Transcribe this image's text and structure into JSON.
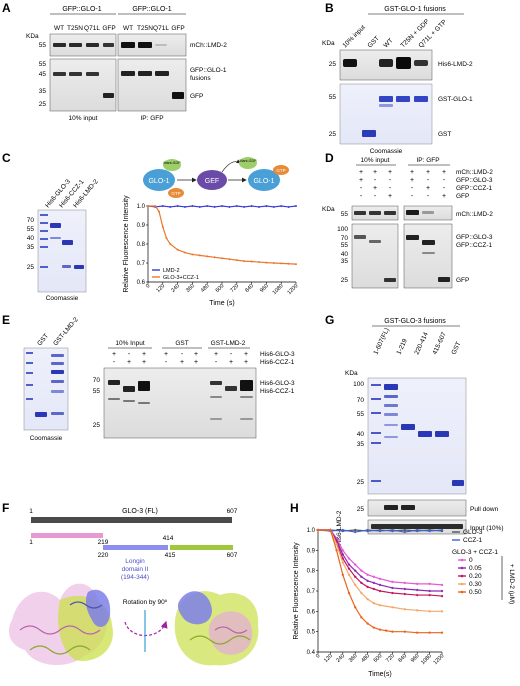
{
  "panelLetters": {
    "A": "A",
    "B": "B",
    "C": "C",
    "D": "D",
    "E": "E",
    "F": "F",
    "G": "G",
    "H": "H"
  },
  "kda": "KDa",
  "panelA": {
    "groups": [
      "GFP::GLO-1",
      "GFP::GLO-1"
    ],
    "lanes": [
      "WT",
      "T25N",
      "Q71L",
      "GFP",
      "WT",
      "T25N",
      "Q71L",
      "GFP"
    ],
    "markersTop": [
      "55"
    ],
    "markersBottom": [
      "55",
      "45",
      "35",
      "25"
    ],
    "rightTop": "mCh::LMD-2",
    "rightMid1": "GFP::GLO-1",
    "rightMid2": "fusions",
    "rightBottom": "GFP",
    "caption1": "10% input",
    "caption2": "IP: GFP"
  },
  "panelB": {
    "group": "GST-GLO-1 fusions",
    "lanes": [
      "10% input",
      "GST",
      "WT",
      "T25N + GDP",
      "Q71L + GTP"
    ],
    "markersTop": [
      "25"
    ],
    "markersBottom": [
      "55",
      "25"
    ],
    "rightTop": "His6-LMD-2",
    "rightMid": "GST-GLO-1",
    "rightBottom": "GST",
    "caption": "Coomassie"
  },
  "panelC": {
    "gelLanes": [
      "His6-GLO-3",
      "His6-CCZ-1",
      "His6-LMD-2"
    ],
    "markers": [
      "70",
      "55",
      "40",
      "35",
      "25"
    ],
    "caption": "Coomassie",
    "scheme": {
      "glo1": "GLO-1",
      "gef": "GEF",
      "gdp": "GDP",
      "gtp": "GTP",
      "gtp2": "GTP",
      "mant": "Mant-GDP",
      "mant2": "Mant-GDP"
    },
    "chart_data": {
      "type": "line",
      "xlabel": "Time (s)",
      "ylabel": "Relative Fluorescence Intensity",
      "xlim": [
        0,
        1200
      ],
      "ylim": [
        0.6,
        1.0
      ],
      "xticks": [
        0,
        120,
        240,
        360,
        480,
        600,
        720,
        840,
        960,
        1080,
        1200
      ],
      "yticks": [
        0.6,
        0.7,
        0.8,
        0.9,
        1.0
      ],
      "legend_position": "bottom-left",
      "series": [
        {
          "name": "LMD-2",
          "color": "#3a3ad6",
          "x": [
            0,
            60,
            120,
            180,
            240,
            300,
            360,
            420,
            480,
            540,
            600,
            660,
            720,
            780,
            840,
            900,
            960,
            1020,
            1080,
            1140,
            1200
          ],
          "y": [
            1.0,
            0.995,
            1.0,
            0.995,
            1.0,
            0.995,
            1.0,
            0.995,
            1.0,
            0.995,
            1.0,
            0.995,
            1.0,
            0.995,
            1.0,
            0.995,
            1.0,
            0.995,
            1.0,
            0.995,
            1.0
          ]
        },
        {
          "name": "GLO-3+CCZ-1",
          "color": "#e9772e",
          "x": [
            0,
            60,
            90,
            120,
            150,
            180,
            240,
            300,
            360,
            420,
            480,
            540,
            600,
            660,
            720,
            780,
            840,
            900,
            960,
            1020,
            1080,
            1140,
            1200
          ],
          "y": [
            1.0,
            1.0,
            0.97,
            0.89,
            0.83,
            0.8,
            0.77,
            0.755,
            0.745,
            0.74,
            0.735,
            0.73,
            0.725,
            0.72,
            0.715,
            0.71,
            0.708,
            0.705,
            0.702,
            0.7,
            0.698,
            0.696,
            0.694
          ]
        }
      ]
    }
  },
  "panelD": {
    "rows": [
      {
        "signs": [
          "+",
          "+",
          "+",
          "+",
          "+",
          "+"
        ],
        "label": "mCh::LMD-2"
      },
      {
        "signs": [
          "+",
          "-",
          "-",
          "+",
          "-",
          "-"
        ],
        "label": "GFP::GLO-3"
      },
      {
        "signs": [
          "-",
          "+",
          "-",
          "-",
          "+",
          "-"
        ],
        "label": "GFP::CCZ-1"
      },
      {
        "signs": [
          "-",
          "-",
          "+",
          "-",
          "-",
          "+"
        ],
        "label": "GFP"
      }
    ],
    "input": "10% input",
    "ip": "IP: GFP",
    "markersTop": [
      "55"
    ],
    "markersBottom": [
      "100",
      "70",
      "55",
      "40",
      "35",
      "25"
    ],
    "rightTop": "mCh::LMD-2",
    "rightMid1": "GFP::GLO-3",
    "rightMid2": "GFP::CCZ-1",
    "rightBottom": "GFP"
  },
  "panelE": {
    "gelLanes": [
      "GST",
      "GST-LMD-2"
    ],
    "caption": "Coomassie",
    "groups": [
      "10% Input",
      "GST",
      "GST-LMD-2"
    ],
    "rows": [
      {
        "signs": [
          "+",
          "-",
          "+",
          "+",
          "-",
          "+",
          "+",
          "-",
          "+"
        ],
        "label": "His6-GLO-3"
      },
      {
        "signs": [
          "-",
          "+",
          "+",
          "-",
          "+",
          "+",
          "-",
          "+",
          "+"
        ],
        "label": "His6-CCZ-1"
      }
    ],
    "markers": [
      "70",
      "55",
      "25"
    ],
    "rightMid1": "His6-GLO-3",
    "rightMid2": "His6-CCZ-1"
  },
  "panelF": {
    "fl": "GLO-3 (FL)",
    "start": "1",
    "end": "607",
    "f1start": "1",
    "f1end": "219",
    "f2start": "220",
    "f2end": "414",
    "f3start": "415",
    "f3end": "607",
    "longin1": "Longin",
    "longin2": "domain II",
    "longin3": "(194-344)",
    "rotation": "Rotation by 90º"
  },
  "panelG": {
    "group": "GST-GLO-3 fusions",
    "lanes": [
      "1-607(FL)",
      "1-219",
      "220-414",
      "415-607",
      "GST"
    ],
    "markers": [
      "100",
      "70",
      "55",
      "40",
      "35",
      "25"
    ],
    "markersPull": [
      "25"
    ],
    "side": "His6-LMD-2",
    "pull": "Pull down",
    "input": "Input (10%)"
  },
  "panelH": {
    "legendTitle": "GLO-3 + CCZ-1",
    "legendUnit": "+ LMD-2 (μM)",
    "chart_data": {
      "type": "line",
      "xlabel": "Time(s)",
      "ylabel": "Relative Fluorescence Intensity",
      "xlim": [
        0,
        1200
      ],
      "ylim": [
        0.4,
        1.0
      ],
      "xticks": [
        0,
        120,
        240,
        360,
        480,
        600,
        720,
        840,
        960,
        1080,
        1200
      ],
      "yticks": [
        0.4,
        0.5,
        0.6,
        0.7,
        0.8,
        0.9,
        1.0
      ],
      "legend_position": "top-right",
      "series": [
        {
          "name": "GLO-3",
          "color": "#555555",
          "x": [
            0,
            120,
            240,
            360,
            480,
            600,
            720,
            840,
            960,
            1080,
            1200
          ],
          "y": [
            1.0,
            1.0,
            0.995,
            1.0,
            0.995,
            1.0,
            0.995,
            1.0,
            0.995,
            1.0,
            0.995
          ]
        },
        {
          "name": "CCZ-1",
          "color": "#3a63d6",
          "x": [
            0,
            120,
            240,
            360,
            480,
            600,
            720,
            840,
            960,
            1080,
            1200
          ],
          "y": [
            1.0,
            0.995,
            1.0,
            0.99,
            1.0,
            0.995,
            1.0,
            0.99,
            1.0,
            0.995,
            1.0
          ]
        },
        {
          "name": "0",
          "color": "#e35bd6",
          "x": [
            0,
            120,
            180,
            240,
            300,
            360,
            420,
            480,
            540,
            600,
            720,
            840,
            960,
            1080,
            1200
          ],
          "y": [
            1.0,
            1.0,
            0.96,
            0.9,
            0.86,
            0.83,
            0.8,
            0.78,
            0.77,
            0.76,
            0.745,
            0.74,
            0.735,
            0.735,
            0.73
          ]
        },
        {
          "name": "0.05",
          "color": "#8e2ab5",
          "x": [
            0,
            120,
            180,
            240,
            300,
            360,
            420,
            480,
            540,
            600,
            720,
            840,
            960,
            1080,
            1200
          ],
          "y": [
            1.0,
            1.0,
            0.95,
            0.88,
            0.83,
            0.8,
            0.77,
            0.75,
            0.74,
            0.73,
            0.715,
            0.71,
            0.705,
            0.7,
            0.7
          ]
        },
        {
          "name": "0.20",
          "color": "#c2185b",
          "x": [
            0,
            120,
            180,
            240,
            300,
            360,
            420,
            480,
            540,
            600,
            720,
            840,
            960,
            1080,
            1200
          ],
          "y": [
            1.0,
            1.0,
            0.94,
            0.86,
            0.81,
            0.77,
            0.74,
            0.72,
            0.71,
            0.7,
            0.69,
            0.685,
            0.68,
            0.68,
            0.675
          ]
        },
        {
          "name": "0.30",
          "color": "#f2a86a",
          "x": [
            0,
            120,
            180,
            240,
            300,
            360,
            420,
            480,
            540,
            600,
            720,
            840,
            960,
            1080,
            1200
          ],
          "y": [
            1.0,
            1.0,
            0.93,
            0.84,
            0.78,
            0.73,
            0.69,
            0.66,
            0.64,
            0.63,
            0.62,
            0.61,
            0.605,
            0.6,
            0.6
          ]
        },
        {
          "name": "0.50",
          "color": "#e8651e",
          "x": [
            0,
            120,
            180,
            240,
            300,
            360,
            420,
            480,
            540,
            600,
            660,
            720,
            840,
            960,
            1080,
            1200
          ],
          "y": [
            1.0,
            1.0,
            0.9,
            0.78,
            0.69,
            0.62,
            0.57,
            0.54,
            0.52,
            0.51,
            0.505,
            0.5,
            0.5,
            0.495,
            0.495,
            0.495
          ]
        }
      ]
    }
  }
}
